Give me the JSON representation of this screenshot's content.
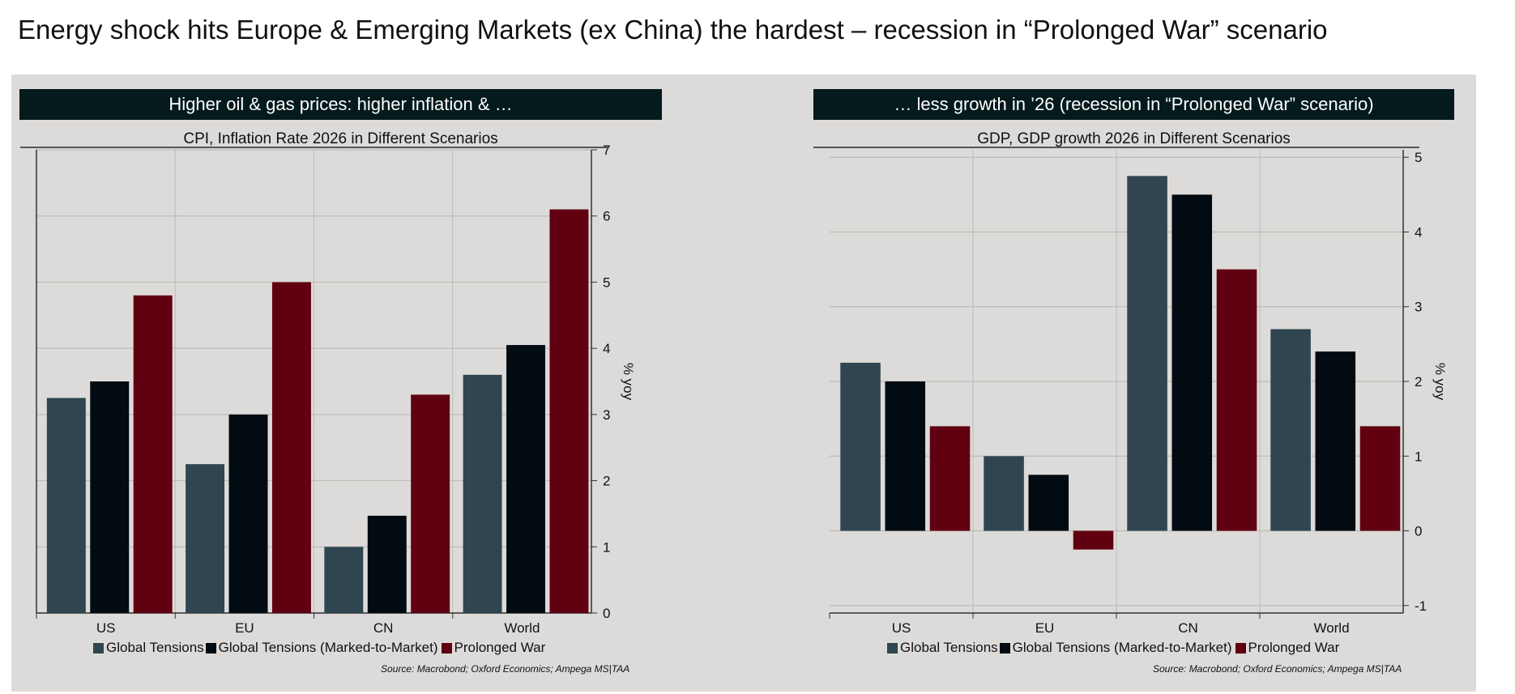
{
  "title": "Energy shock hits Europe & Emerging Markets (ex China) the hardest – recession in “Prolonged War” scenario",
  "colors": {
    "Global Tensions": "#2f4650",
    "Global Tensions (Marked-to-Market)": "#020a12",
    "Prolonged War": "#600010",
    "background": "#dddbd9",
    "header": "#041a1c"
  },
  "chart_data": [
    {
      "type": "bar",
      "header": "Higher oil & gas prices: higher inflation & …",
      "title": "CPI, Inflation Rate 2026 in Different Scenarios",
      "ylabel": "% yoy",
      "ylim": [
        0,
        7
      ],
      "yticks": [
        0,
        1,
        2,
        3,
        4,
        5,
        6,
        7
      ],
      "grid": true,
      "legend_position": "bottom",
      "categories": [
        "US",
        "EU",
        "CN",
        "World"
      ],
      "series": [
        {
          "name": "Global Tensions",
          "values": [
            3.25,
            2.25,
            1.0,
            3.6
          ]
        },
        {
          "name": "Global Tensions (Marked-to-Market)",
          "values": [
            3.5,
            3.0,
            1.47,
            4.05
          ]
        },
        {
          "name": "Prolonged War",
          "values": [
            4.8,
            5.0,
            3.3,
            6.1
          ]
        }
      ],
      "source": "Source: Macrobond; Oxford Economics; Ampega MS|TAA"
    },
    {
      "type": "bar",
      "header": "… less growth in ’26 (recession in “Prolonged War” scenario)",
      "title": "GDP, GDP growth 2026 in Different Scenarios",
      "ylabel": "% yoy",
      "ylim": [
        -1.1,
        5.1
      ],
      "yticks": [
        -1,
        0,
        1,
        2,
        3,
        4,
        5
      ],
      "grid": true,
      "legend_position": "bottom",
      "categories": [
        "US",
        "EU",
        "CN",
        "World"
      ],
      "series": [
        {
          "name": "Global Tensions",
          "values": [
            2.25,
            1.0,
            4.75,
            2.7
          ]
        },
        {
          "name": "Global Tensions (Marked-to-Market)",
          "values": [
            2.0,
            0.75,
            4.5,
            2.4
          ]
        },
        {
          "name": "Prolonged War",
          "values": [
            1.4,
            -0.25,
            3.5,
            1.4
          ]
        }
      ],
      "source": "Source: Macrobond; Oxford Economics; Ampega MS|TAA"
    }
  ]
}
